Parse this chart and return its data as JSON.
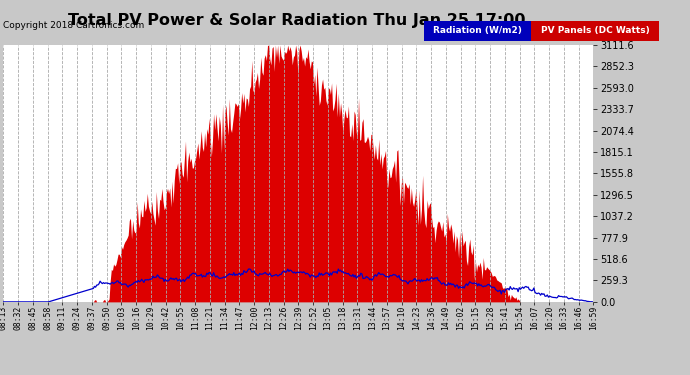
{
  "title": "Total PV Power & Solar Radiation Thu Jan 25 17:00",
  "copyright": "Copyright 2018 Cartronics.com",
  "background_color": "#c8c8c8",
  "plot_bg_color": "#ffffff",
  "bar_color": "#dd0000",
  "line_color": "#0000cc",
  "legend_radiation_bg": "#0000bb",
  "legend_pv_bg": "#cc0000",
  "legend_text_color": "#ffffff",
  "ytick_labels": [
    "0.0",
    "259.3",
    "518.6",
    "777.9",
    "1037.2",
    "1296.5",
    "1555.8",
    "1815.1",
    "2074.4",
    "2333.7",
    "2593.0",
    "2852.3",
    "3111.6"
  ],
  "ytick_values": [
    0.0,
    259.3,
    518.6,
    777.9,
    1037.2,
    1296.5,
    1555.8,
    1815.1,
    2074.4,
    2333.7,
    2593.0,
    2852.3,
    3111.6
  ],
  "ymax": 3111.6,
  "ymin": 0.0,
  "x_labels": [
    "08:13",
    "08:32",
    "08:45",
    "08:58",
    "09:11",
    "09:24",
    "09:37",
    "09:50",
    "10:03",
    "10:16",
    "10:29",
    "10:42",
    "10:55",
    "11:08",
    "11:21",
    "11:34",
    "11:47",
    "12:00",
    "12:13",
    "12:26",
    "12:39",
    "12:52",
    "13:05",
    "13:18",
    "13:31",
    "13:44",
    "13:57",
    "14:10",
    "14:23",
    "14:36",
    "14:49",
    "15:02",
    "15:15",
    "15:28",
    "15:41",
    "15:54",
    "16:07",
    "16:20",
    "16:33",
    "16:46",
    "16:59"
  ],
  "grid_color": "#aaaaaa",
  "tick_color": "#000000"
}
